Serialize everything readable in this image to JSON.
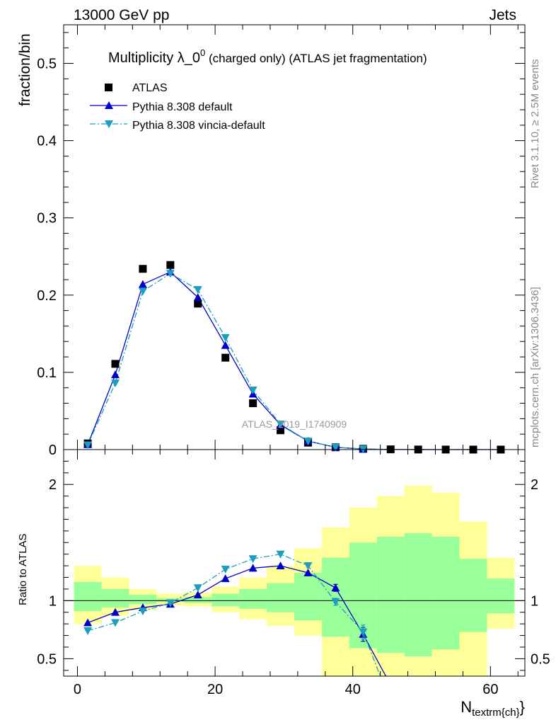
{
  "header": {
    "left": "13000 GeV pp",
    "right": "Jets"
  },
  "side": {
    "rivet": "Rivet 3.1.10, ≥ 2.5M events",
    "mcplots": "mcplots.cern.ch [arXiv:1306.3436]"
  },
  "title": {
    "main": "Multiplicity λ_0",
    "sup": "0",
    "rest": " (charged only) (ATLAS jet fragmentation)"
  },
  "watermark": "ATLAS_2019_I1740909",
  "colors": {
    "data": "#000000",
    "pythia": "#0000cc",
    "vincia": "#1a9fbf",
    "band_outer": "#ffff99",
    "band_inner": "#99ff99"
  },
  "chart_data": [
    {
      "type": "scatter",
      "title": "Multiplicity λ_0^0 (charged only) (ATLAS jet fragmentation)",
      "ylabel": "fraction/bin",
      "xlim": [
        -2,
        65
      ],
      "ylim": [
        0,
        0.55
      ],
      "yticks": [
        0,
        0.1,
        0.2,
        0.3,
        0.4,
        0.5
      ],
      "ytick_labels": [
        "0",
        "0.1",
        "0.2",
        "0.3",
        "0.4",
        "0.5"
      ],
      "legend_position": "top-left",
      "x": [
        1.5,
        5.5,
        9.5,
        13.5,
        17.5,
        21.5,
        25.5,
        29.5,
        33.5,
        37.5,
        41.5,
        45.5,
        49.5,
        53.5,
        57.5,
        61.5
      ],
      "series": [
        {
          "name": "ATLAS",
          "marker": "square",
          "values": [
            0.008,
            0.111,
            0.234,
            0.239,
            0.189,
            0.119,
            0.06,
            0.025,
            0.009,
            0.003,
            0.001,
            0.0003,
            0.0001,
            3e-05,
            1e-05,
            5e-06
          ]
        },
        {
          "name": "Pythia 8.308 default",
          "marker": "triangle-up",
          "line": "solid",
          "values": [
            0.0065,
            0.097,
            0.214,
            0.23,
            0.197,
            0.135,
            0.072,
            0.032,
            0.011,
            0.003,
            0.0007,
            0.0002,
            5e-05,
            1e-05,
            3e-06,
            1e-06
          ]
        },
        {
          "name": "Pythia 8.308 vincia-default",
          "marker": "triangle-down",
          "line": "dashdot",
          "values": [
            0.006,
            0.086,
            0.205,
            0.228,
            0.207,
            0.145,
            0.077,
            0.033,
            0.011,
            0.003,
            0.0007,
            0.0002,
            5e-05,
            1e-05,
            3e-06,
            1e-06
          ]
        }
      ]
    },
    {
      "type": "line",
      "ylabel": "Ratio to ATLAS",
      "xlabel": "N",
      "xlabel_sub": "textrm{ch}",
      "xlabel_close": "}",
      "xlim": [
        -2,
        65
      ],
      "ylim": [
        0.35,
        2.3
      ],
      "yticks": [
        0.5,
        1,
        2
      ],
      "ytick_labels": [
        "0.5",
        "1",
        "2"
      ],
      "xticks": [
        0,
        20,
        40,
        60
      ],
      "xtick_labels": [
        "0",
        "20",
        "40",
        "60"
      ],
      "bands": {
        "edges": [
          -0.5,
          3.5,
          7.5,
          11.5,
          15.5,
          19.5,
          23.5,
          27.5,
          31.5,
          35.5,
          39.5,
          43.5,
          47.5,
          51.5,
          55.5,
          59.5,
          63.5
        ],
        "outer_lo": [
          0.8,
          0.87,
          0.92,
          0.96,
          0.95,
          0.9,
          0.84,
          0.78,
          0.7,
          0.35,
          0.35,
          0.35,
          0.35,
          0.35,
          0.35,
          0.76
        ],
        "outer_hi": [
          1.3,
          1.2,
          1.1,
          1.06,
          1.07,
          1.12,
          1.2,
          1.3,
          1.45,
          1.63,
          1.8,
          1.9,
          1.99,
          1.93,
          1.68,
          1.37
        ],
        "inner_lo": [
          0.91,
          0.94,
          0.97,
          0.99,
          0.98,
          0.95,
          0.93,
          0.9,
          0.83,
          0.69,
          0.59,
          0.55,
          0.52,
          0.58,
          0.73,
          0.89
        ],
        "inner_hi": [
          1.16,
          1.1,
          1.05,
          1.02,
          1.03,
          1.06,
          1.1,
          1.15,
          1.24,
          1.37,
          1.5,
          1.55,
          1.58,
          1.55,
          1.36,
          1.19
        ]
      },
      "series": [
        {
          "name": "Pythia 8.308 default",
          "x": [
            1.5,
            5.5,
            9.5,
            13.5,
            17.5,
            21.5,
            25.5,
            29.5,
            33.5,
            37.5,
            41.5,
            44.8
          ],
          "values": [
            0.81,
            0.9,
            0.94,
            0.97,
            1.05,
            1.19,
            1.28,
            1.3,
            1.24,
            1.11,
            0.71,
            0.35
          ],
          "errors": [
            0.02,
            0.01,
            0.01,
            0.01,
            0.01,
            0.01,
            0.01,
            0.01,
            0.02,
            0.03,
            0.06,
            0
          ]
        },
        {
          "name": "Pythia 8.308 vincia-default",
          "x": [
            1.5,
            5.5,
            9.5,
            13.5,
            17.5,
            21.5,
            25.5,
            29.5,
            33.5,
            37.5,
            41.5,
            44.0
          ],
          "values": [
            0.74,
            0.81,
            0.91,
            0.98,
            1.11,
            1.27,
            1.36,
            1.4,
            1.3,
            0.99,
            0.73,
            0.35
          ],
          "errors": [
            0.02,
            0.01,
            0.01,
            0.01,
            0.01,
            0.01,
            0.01,
            0.01,
            0.02,
            0.03,
            0.06,
            0
          ]
        }
      ]
    }
  ]
}
